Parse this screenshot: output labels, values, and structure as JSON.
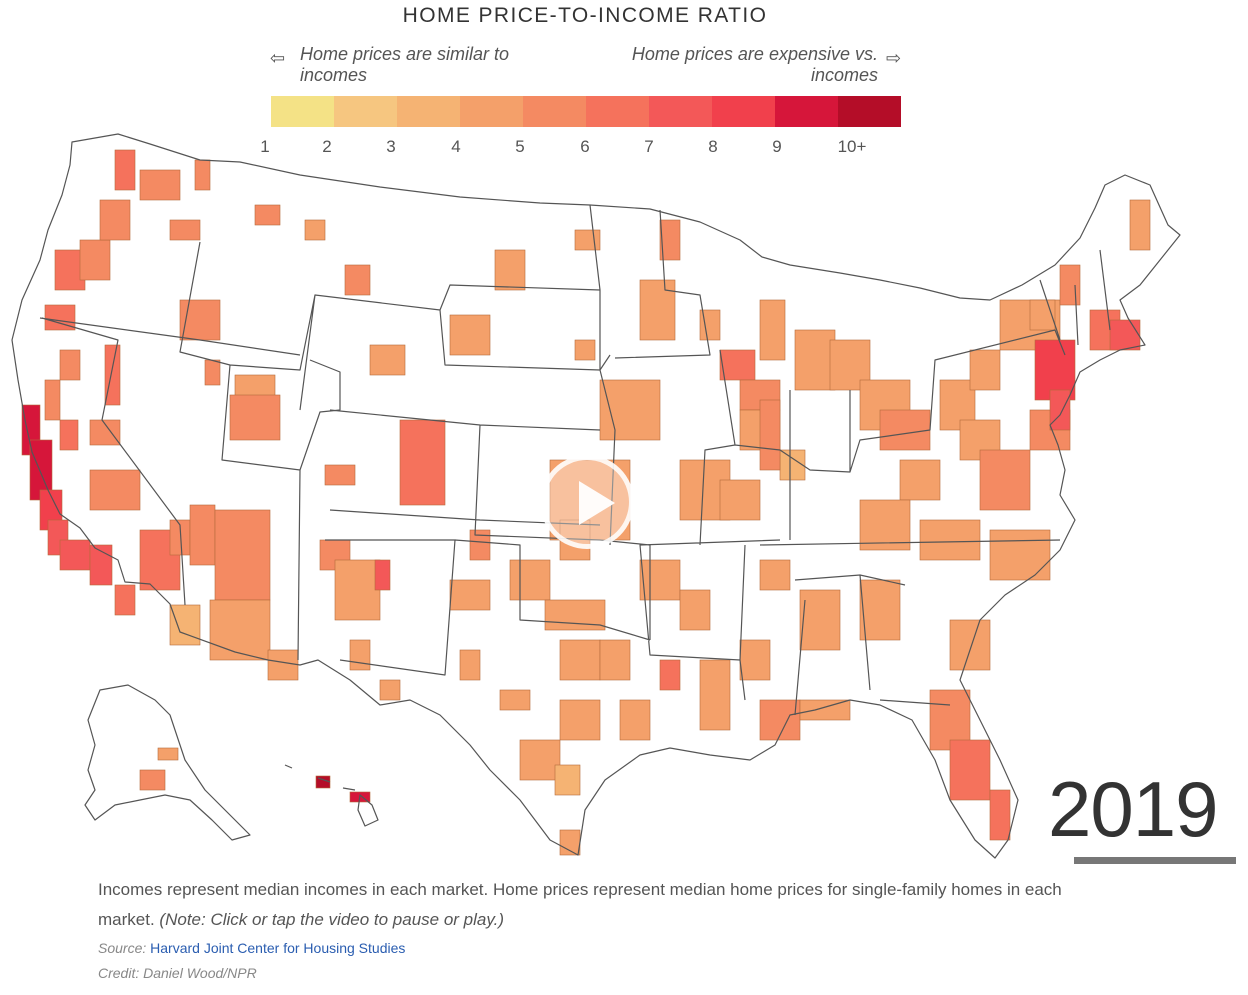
{
  "title": "HOME PRICE-TO-INCOME RATIO",
  "legend": {
    "left_hint": "Home prices are similar to incomes",
    "left_hint_line1": "Home prices are similar to",
    "left_hint_line2": "incomes",
    "right_hint": "Home prices are expensive vs. incomes",
    "right_hint_line1": "Home prices are expensive vs.",
    "right_hint_line2": "incomes",
    "left_arrow": "⇦",
    "right_arrow": "⇨",
    "ticks": [
      "1",
      "2",
      "3",
      "4",
      "5",
      "6",
      "7",
      "8",
      "9",
      "10+"
    ],
    "colors": [
      "#f4e286",
      "#f6c680",
      "#f5b373",
      "#f4a06a",
      "#f48a62",
      "#f5725c",
      "#f35858",
      "#f1404c",
      "#d6163a",
      "#b40d28"
    ]
  },
  "year": "2019",
  "note_text": "Incomes represent median incomes in each market. Home prices represent median home prices for single-family homes in each market.",
  "note_italic": "(Note: Click or tap the video to pause or play.)",
  "source_label": "Source:",
  "source_link": "Harvard Joint Center for Housing Studies",
  "credit": "Credit: Daniel Wood/NPR"
}
